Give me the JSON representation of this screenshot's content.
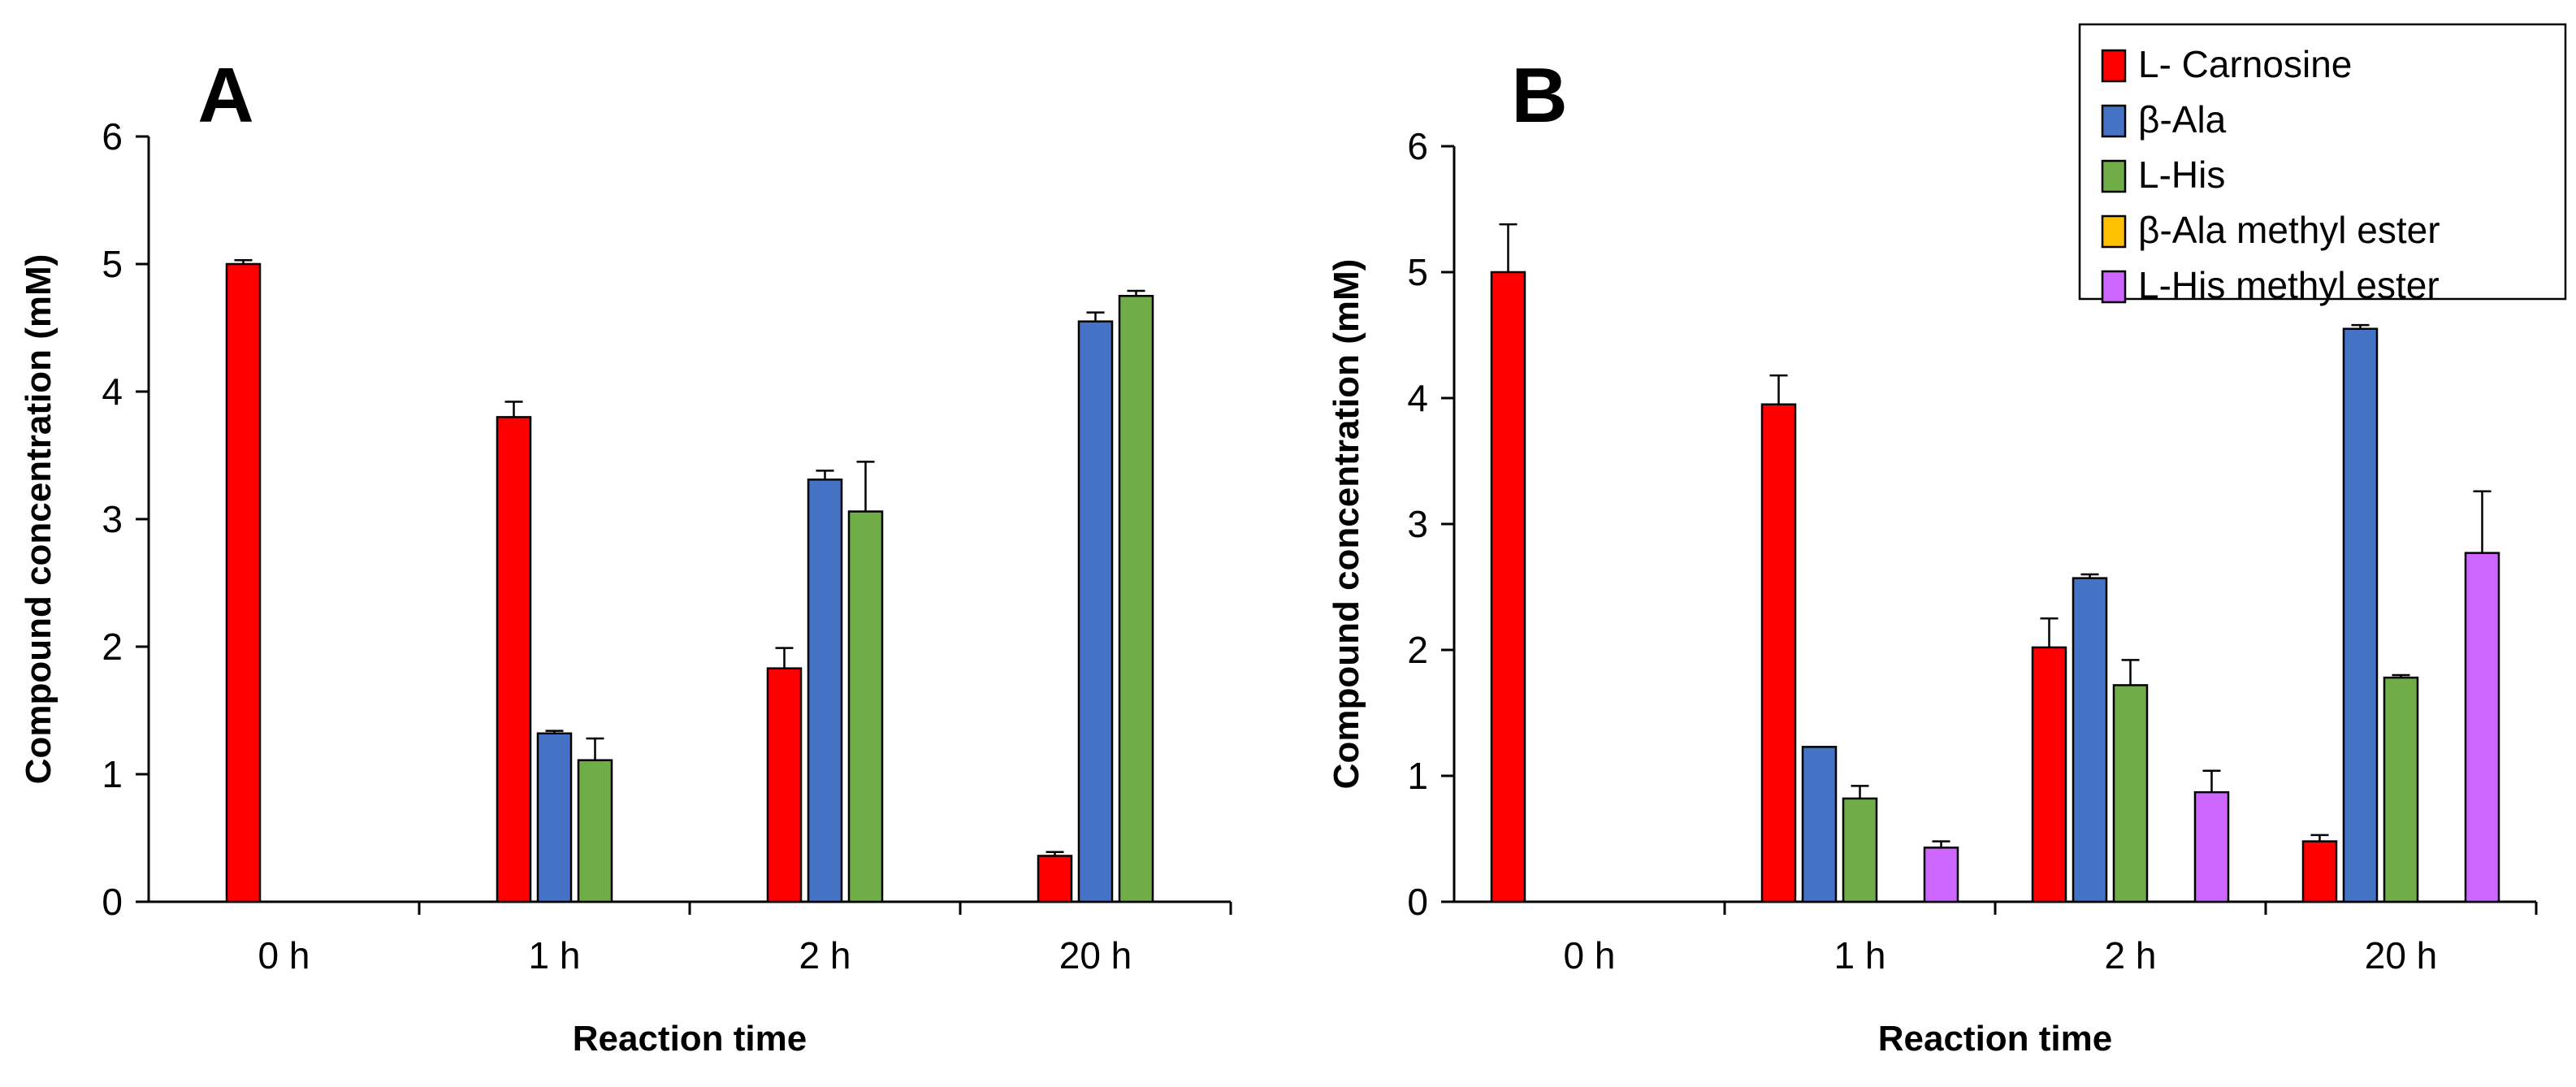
{
  "colors": {
    "L- Carnosine": "#ff0000",
    "β-Ala": "#4472c4",
    "L-His": "#70ad47",
    "β-Ala methyl ester": "#ffc000",
    "L-His methyl ester": "#cc66ff"
  },
  "legend": {
    "position": "top-right",
    "entries": [
      "L- Carnosine",
      "β-Ala",
      "L-His",
      "β-Ala methyl ester",
      "L-His methyl ester"
    ]
  },
  "chart_data": [
    {
      "panel": "A",
      "type": "bar",
      "xlabel": "Reaction time",
      "ylabel": "Compound concentration (mM)",
      "ylim": [
        0,
        6
      ],
      "yticks": [
        0,
        1,
        2,
        3,
        4,
        5,
        6
      ],
      "categories": [
        "0 h",
        "1 h",
        "2 h",
        "20 h"
      ],
      "series": [
        {
          "name": "L- Carnosine",
          "values": [
            5.0,
            3.8,
            1.83,
            0.36
          ],
          "errors": [
            0.03,
            0.12,
            0.16,
            0.03
          ]
        },
        {
          "name": "β-Ala",
          "values": [
            0,
            1.32,
            3.31,
            4.55
          ],
          "errors": [
            0,
            0.02,
            0.07,
            0.07
          ]
        },
        {
          "name": "L-His",
          "values": [
            0,
            1.11,
            3.06,
            4.75
          ],
          "errors": [
            0,
            0.17,
            0.39,
            0.04
          ]
        }
      ]
    },
    {
      "panel": "B",
      "type": "bar",
      "xlabel": "Reaction time",
      "ylabel": "Compound concentration (mM)",
      "ylim": [
        0,
        6
      ],
      "yticks": [
        0,
        1,
        2,
        3,
        4,
        5,
        6
      ],
      "categories": [
        "0 h",
        "1 h",
        "2 h",
        "20 h"
      ],
      "series": [
        {
          "name": "L- Carnosine",
          "values": [
            5.0,
            3.95,
            2.02,
            0.48
          ],
          "errors": [
            0.38,
            0.23,
            0.23,
            0.05
          ]
        },
        {
          "name": "β-Ala",
          "values": [
            0,
            1.23,
            2.57,
            4.55
          ],
          "errors": [
            0,
            0,
            0.03,
            0.03
          ]
        },
        {
          "name": "L-His",
          "values": [
            0,
            0.82,
            1.72,
            1.78
          ],
          "errors": [
            0,
            0.1,
            0.2,
            0.02
          ]
        },
        {
          "name": "β-Ala methyl ester",
          "values": [
            0,
            0,
            0,
            0
          ],
          "errors": [
            0,
            0,
            0,
            0
          ]
        },
        {
          "name": "L-His methyl ester",
          "values": [
            0,
            0.43,
            0.87,
            2.77
          ],
          "errors": [
            0,
            0.05,
            0.17,
            0.49
          ]
        }
      ]
    }
  ]
}
